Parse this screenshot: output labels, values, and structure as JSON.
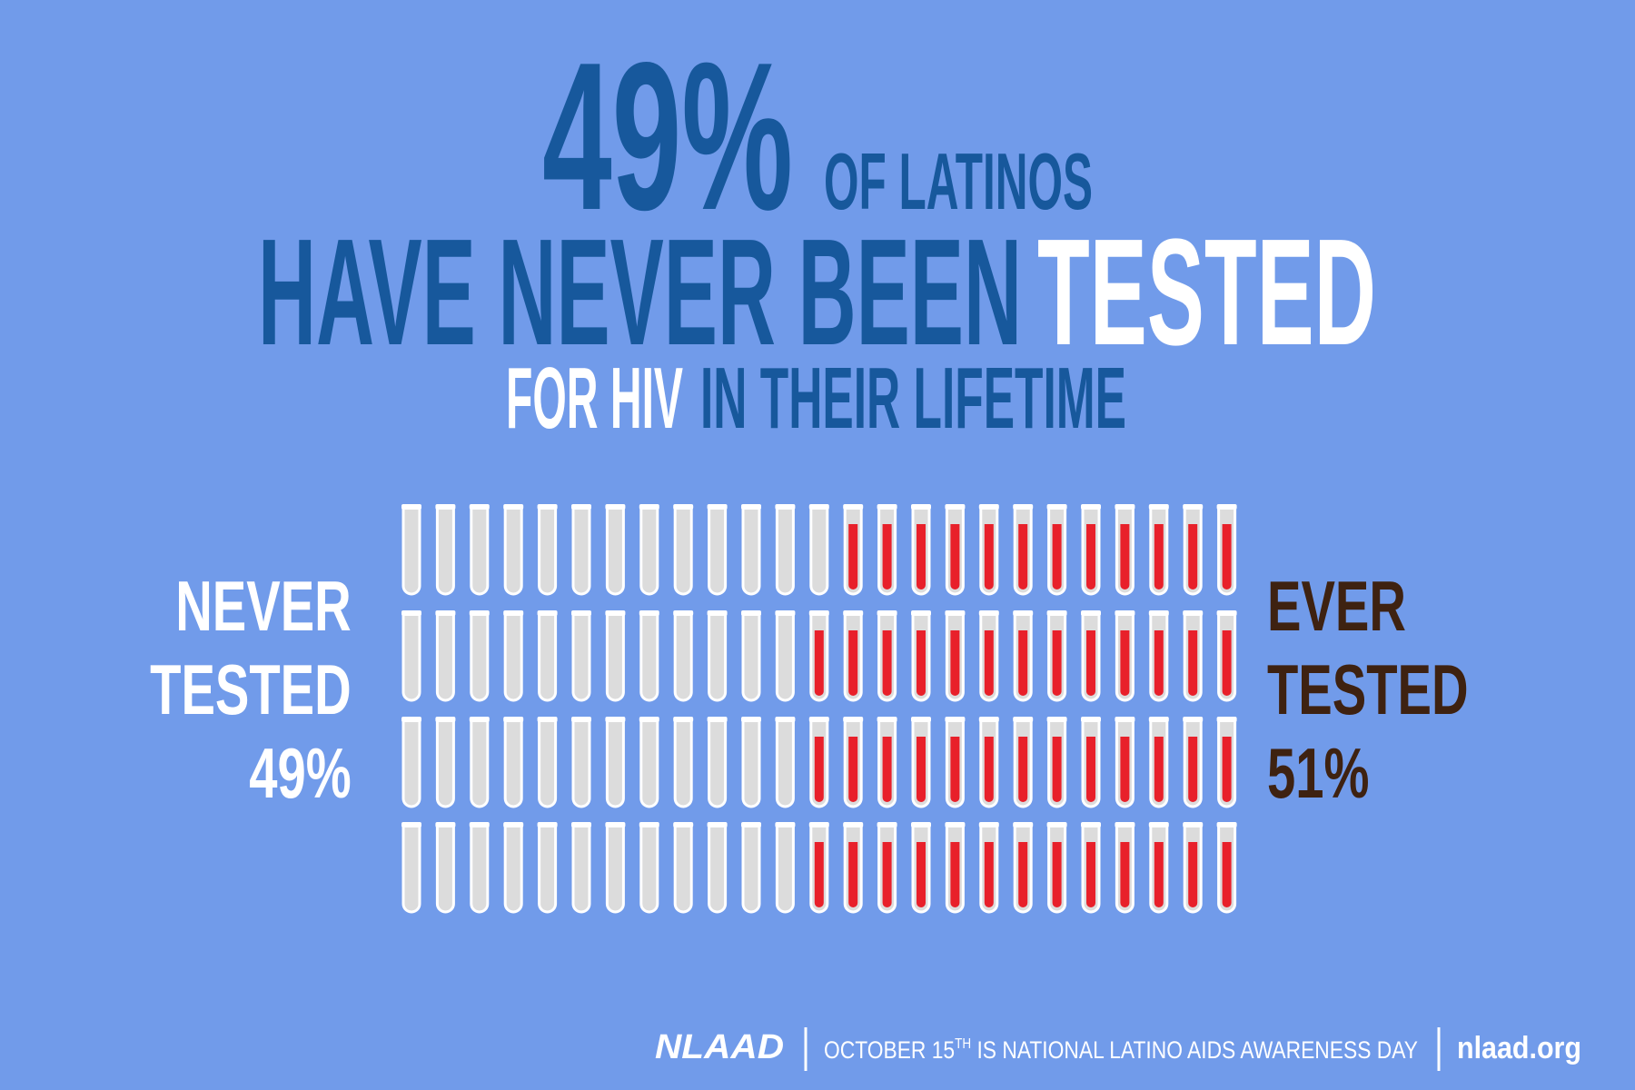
{
  "header": {
    "stat": "49%",
    "stat_tail": "OF LATINOS",
    "line2_a": "HAVE NEVER BEEN",
    "line2_b": "TESTED",
    "line3_a": "FOR HIV",
    "line3_b": "IN THEIR LIFETIME"
  },
  "chart_data": {
    "type": "pictograph",
    "categories": [
      "NEVER TESTED",
      "EVER TESTED"
    ],
    "values": [
      49,
      51
    ],
    "value_labels": [
      "49%",
      "51%"
    ],
    "colors": [
      "#dcdcdc",
      "#e8202a"
    ]
  },
  "footer": {
    "logo": "NLAAD",
    "note_a": "OCTOBER 15",
    "note_sup": "TH",
    "note_b": " IS NATIONAL LATINO AIDS AWARENESS DAY",
    "url": "nlaad.org"
  }
}
